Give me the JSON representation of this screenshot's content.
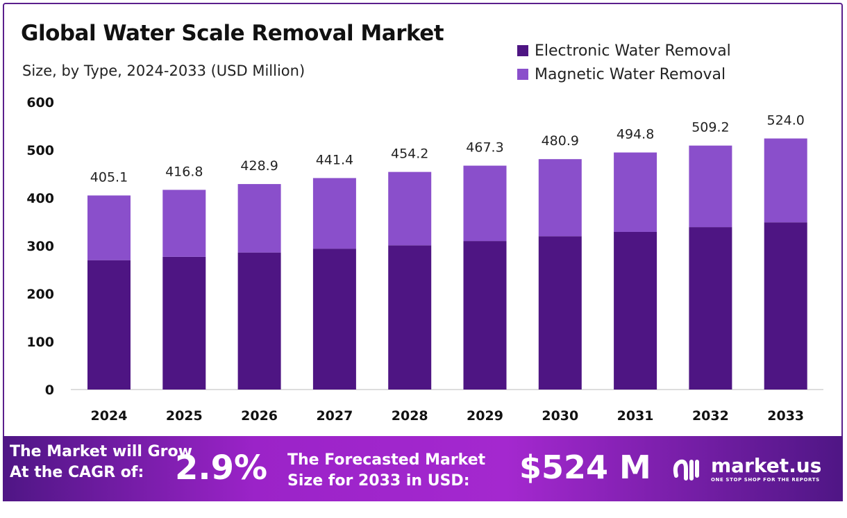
{
  "chart_data": {
    "type": "bar",
    "stacked": true,
    "title": "Global Water Scale Removal Market",
    "subtitle": "Size, by Type, 2024-2033 (USD Million)",
    "categories": [
      "2024",
      "2025",
      "2026",
      "2027",
      "2028",
      "2029",
      "2030",
      "2031",
      "2032",
      "2033"
    ],
    "series": [
      {
        "name": "Electronic Water Removal",
        "color": "#4e1583",
        "values": [
          270,
          277,
          286,
          294,
          301,
          310,
          320,
          329,
          339,
          349
        ]
      },
      {
        "name": "Magnetic Water Removal",
        "color": "#8a4fcb",
        "values": [
          135.1,
          139.8,
          142.9,
          147.4,
          153.2,
          157.3,
          160.9,
          165.8,
          170.2,
          175.0
        ]
      }
    ],
    "totals": [
      "405.1",
      "416.8",
      "428.9",
      "441.4",
      "454.2",
      "467.3",
      "480.9",
      "494.8",
      "509.2",
      "524.0"
    ],
    "ylim": [
      0,
      600
    ],
    "yticks": [
      0,
      100,
      200,
      300,
      400,
      500,
      600
    ],
    "grid": false,
    "legend": "top-right"
  },
  "footer": {
    "cagr_line1": "The Market will Grow",
    "cagr_line2": "At the CAGR of:",
    "cagr_value": "2.9%",
    "forecast_line1": "The Forecasted Market",
    "forecast_line2": "Size for 2033 in USD:",
    "forecast_value": "$524 M",
    "logo_name": "market.us",
    "logo_tagline": "ONE STOP SHOP FOR THE REPORTS"
  }
}
